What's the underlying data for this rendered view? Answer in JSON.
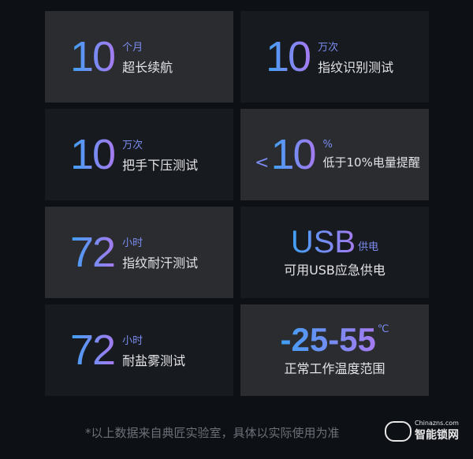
{
  "cards": [
    {
      "value": "10",
      "unit": "个月",
      "label": "超长续航"
    },
    {
      "value": "10",
      "unit": "万次",
      "label": "指纹识别测试"
    },
    {
      "value": "10",
      "unit": "万次",
      "label": "把手下压测试"
    },
    {
      "prefix": "<",
      "value": "10",
      "unit": "%",
      "label": "低于10%电量提醒"
    },
    {
      "value": "72",
      "unit": "小时",
      "label": "指纹耐汗测试"
    },
    {
      "value": "USB",
      "unit": "供电",
      "label": "可用USB应急供电"
    },
    {
      "value": "72",
      "unit": "小时",
      "label": "耐盐雾测试"
    },
    {
      "value": "-25-55",
      "unit": "℃",
      "label": "正常工作温度范围"
    }
  ],
  "footnote": "*以上数据来自典匠实验室，具体以实际使用为准",
  "watermark": {
    "site": "Chinazns.com",
    "name": "智能锁网"
  },
  "colors": {
    "background": "#0d1015",
    "card_light": "#2a2c30",
    "card_dark": "#171a1f",
    "gradient_start": "#3fa0f5",
    "gradient_end": "#a57bf0"
  }
}
